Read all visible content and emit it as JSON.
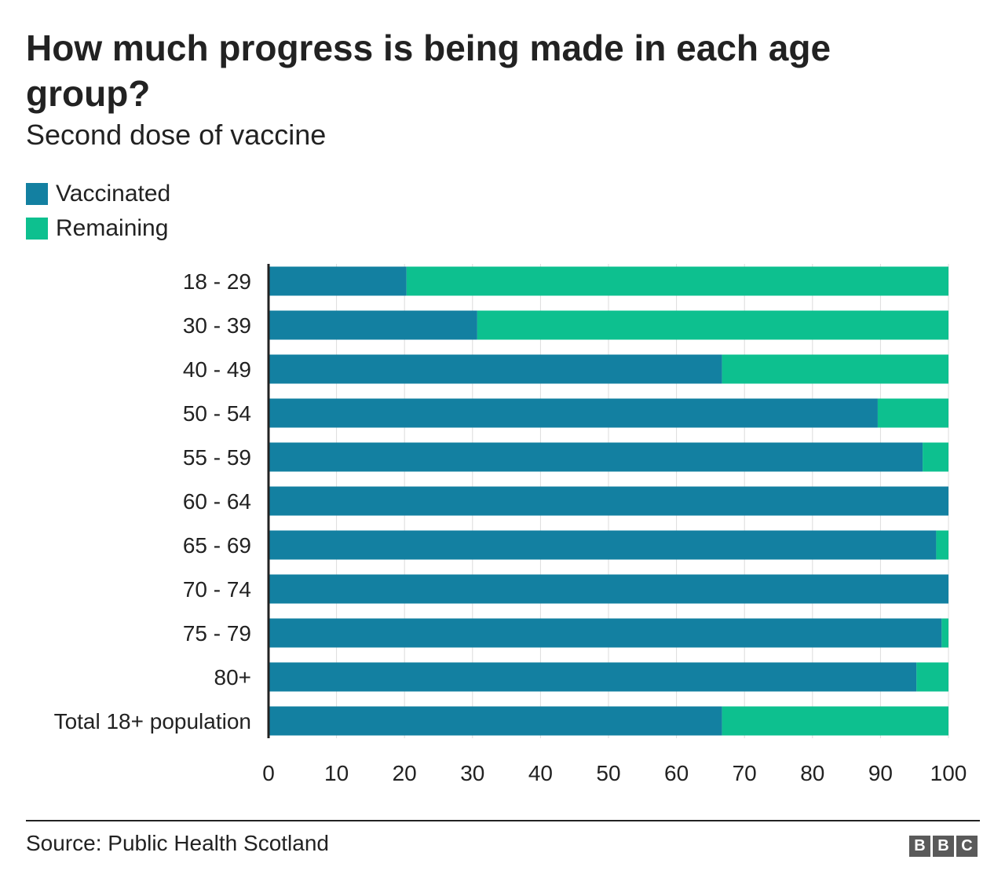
{
  "chart_data": {
    "type": "bar",
    "orientation": "horizontal",
    "stacked": true,
    "title": "How much progress is being made in each age group?",
    "subtitle": "Second dose of vaccine",
    "categories": [
      "18 - 29",
      "30 - 39",
      "40 - 49",
      "50 - 54",
      "55 - 59",
      "60 - 64",
      "65 - 69",
      "70 - 74",
      "75 - 79",
      "80+",
      "Total 18+ population"
    ],
    "series": [
      {
        "name": "Vaccinated",
        "color": "#1380a1",
        "values": [
          20.3,
          30.7,
          66.7,
          89.6,
          96.2,
          100,
          98.2,
          100,
          99.0,
          95.3,
          66.7
        ]
      },
      {
        "name": "Remaining",
        "color": "#0dc08f",
        "values": [
          79.7,
          69.3,
          33.3,
          10.4,
          3.8,
          0,
          1.8,
          0,
          1.0,
          4.7,
          33.3
        ]
      }
    ],
    "xlim": [
      0,
      100
    ],
    "xticks": [
      "0",
      "10",
      "20",
      "30",
      "40",
      "50",
      "60",
      "70",
      "80",
      "90",
      "100"
    ],
    "grid": true,
    "legend_position": "top-left"
  },
  "footer": {
    "source": "Source: Public Health Scotland",
    "logo_letters": [
      "B",
      "B",
      "C"
    ]
  }
}
